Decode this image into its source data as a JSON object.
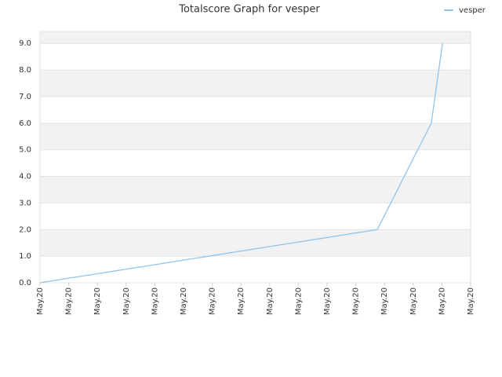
{
  "chart_data": {
    "type": "line",
    "title": "Totalscore Graph for vesper",
    "x": [
      0,
      11.75,
      13.63,
      14.02
    ],
    "series": [
      {
        "name": "vesper",
        "color": "#90c4ec",
        "values": [
          0,
          2,
          6,
          9
        ]
      }
    ],
    "xlim": [
      0,
      15
    ],
    "xticks": [
      {
        "value": 0,
        "label": "May.20"
      },
      {
        "value": 1,
        "label": "May.20"
      },
      {
        "value": 2,
        "label": "May.20"
      },
      {
        "value": 3,
        "label": "May.20"
      },
      {
        "value": 4,
        "label": "May.20"
      },
      {
        "value": 5,
        "label": "May.20"
      },
      {
        "value": 6,
        "label": "May.20"
      },
      {
        "value": 7,
        "label": "May.20"
      },
      {
        "value": 8,
        "label": "May.20"
      },
      {
        "value": 9,
        "label": "May.20"
      },
      {
        "value": 10,
        "label": "May.20"
      },
      {
        "value": 11,
        "label": "May.20"
      },
      {
        "value": 12,
        "label": "May.20"
      },
      {
        "value": 13,
        "label": "May.20"
      },
      {
        "value": 14,
        "label": "May.20"
      },
      {
        "value": 15,
        "label": "May.20"
      }
    ],
    "ylim": [
      0,
      9.45
    ],
    "yticks": [
      {
        "value": 0,
        "label": "0.0"
      },
      {
        "value": 1,
        "label": "1.0"
      },
      {
        "value": 2,
        "label": "2.0"
      },
      {
        "value": 3,
        "label": "3.0"
      },
      {
        "value": 4,
        "label": "4.0"
      },
      {
        "value": 5,
        "label": "5.0"
      },
      {
        "value": 6,
        "label": "6.0"
      },
      {
        "value": 7,
        "label": "7.0"
      },
      {
        "value": 8,
        "label": "8.0"
      },
      {
        "value": 9,
        "label": "9.0"
      }
    ],
    "grid": true,
    "legend": "top-right"
  }
}
